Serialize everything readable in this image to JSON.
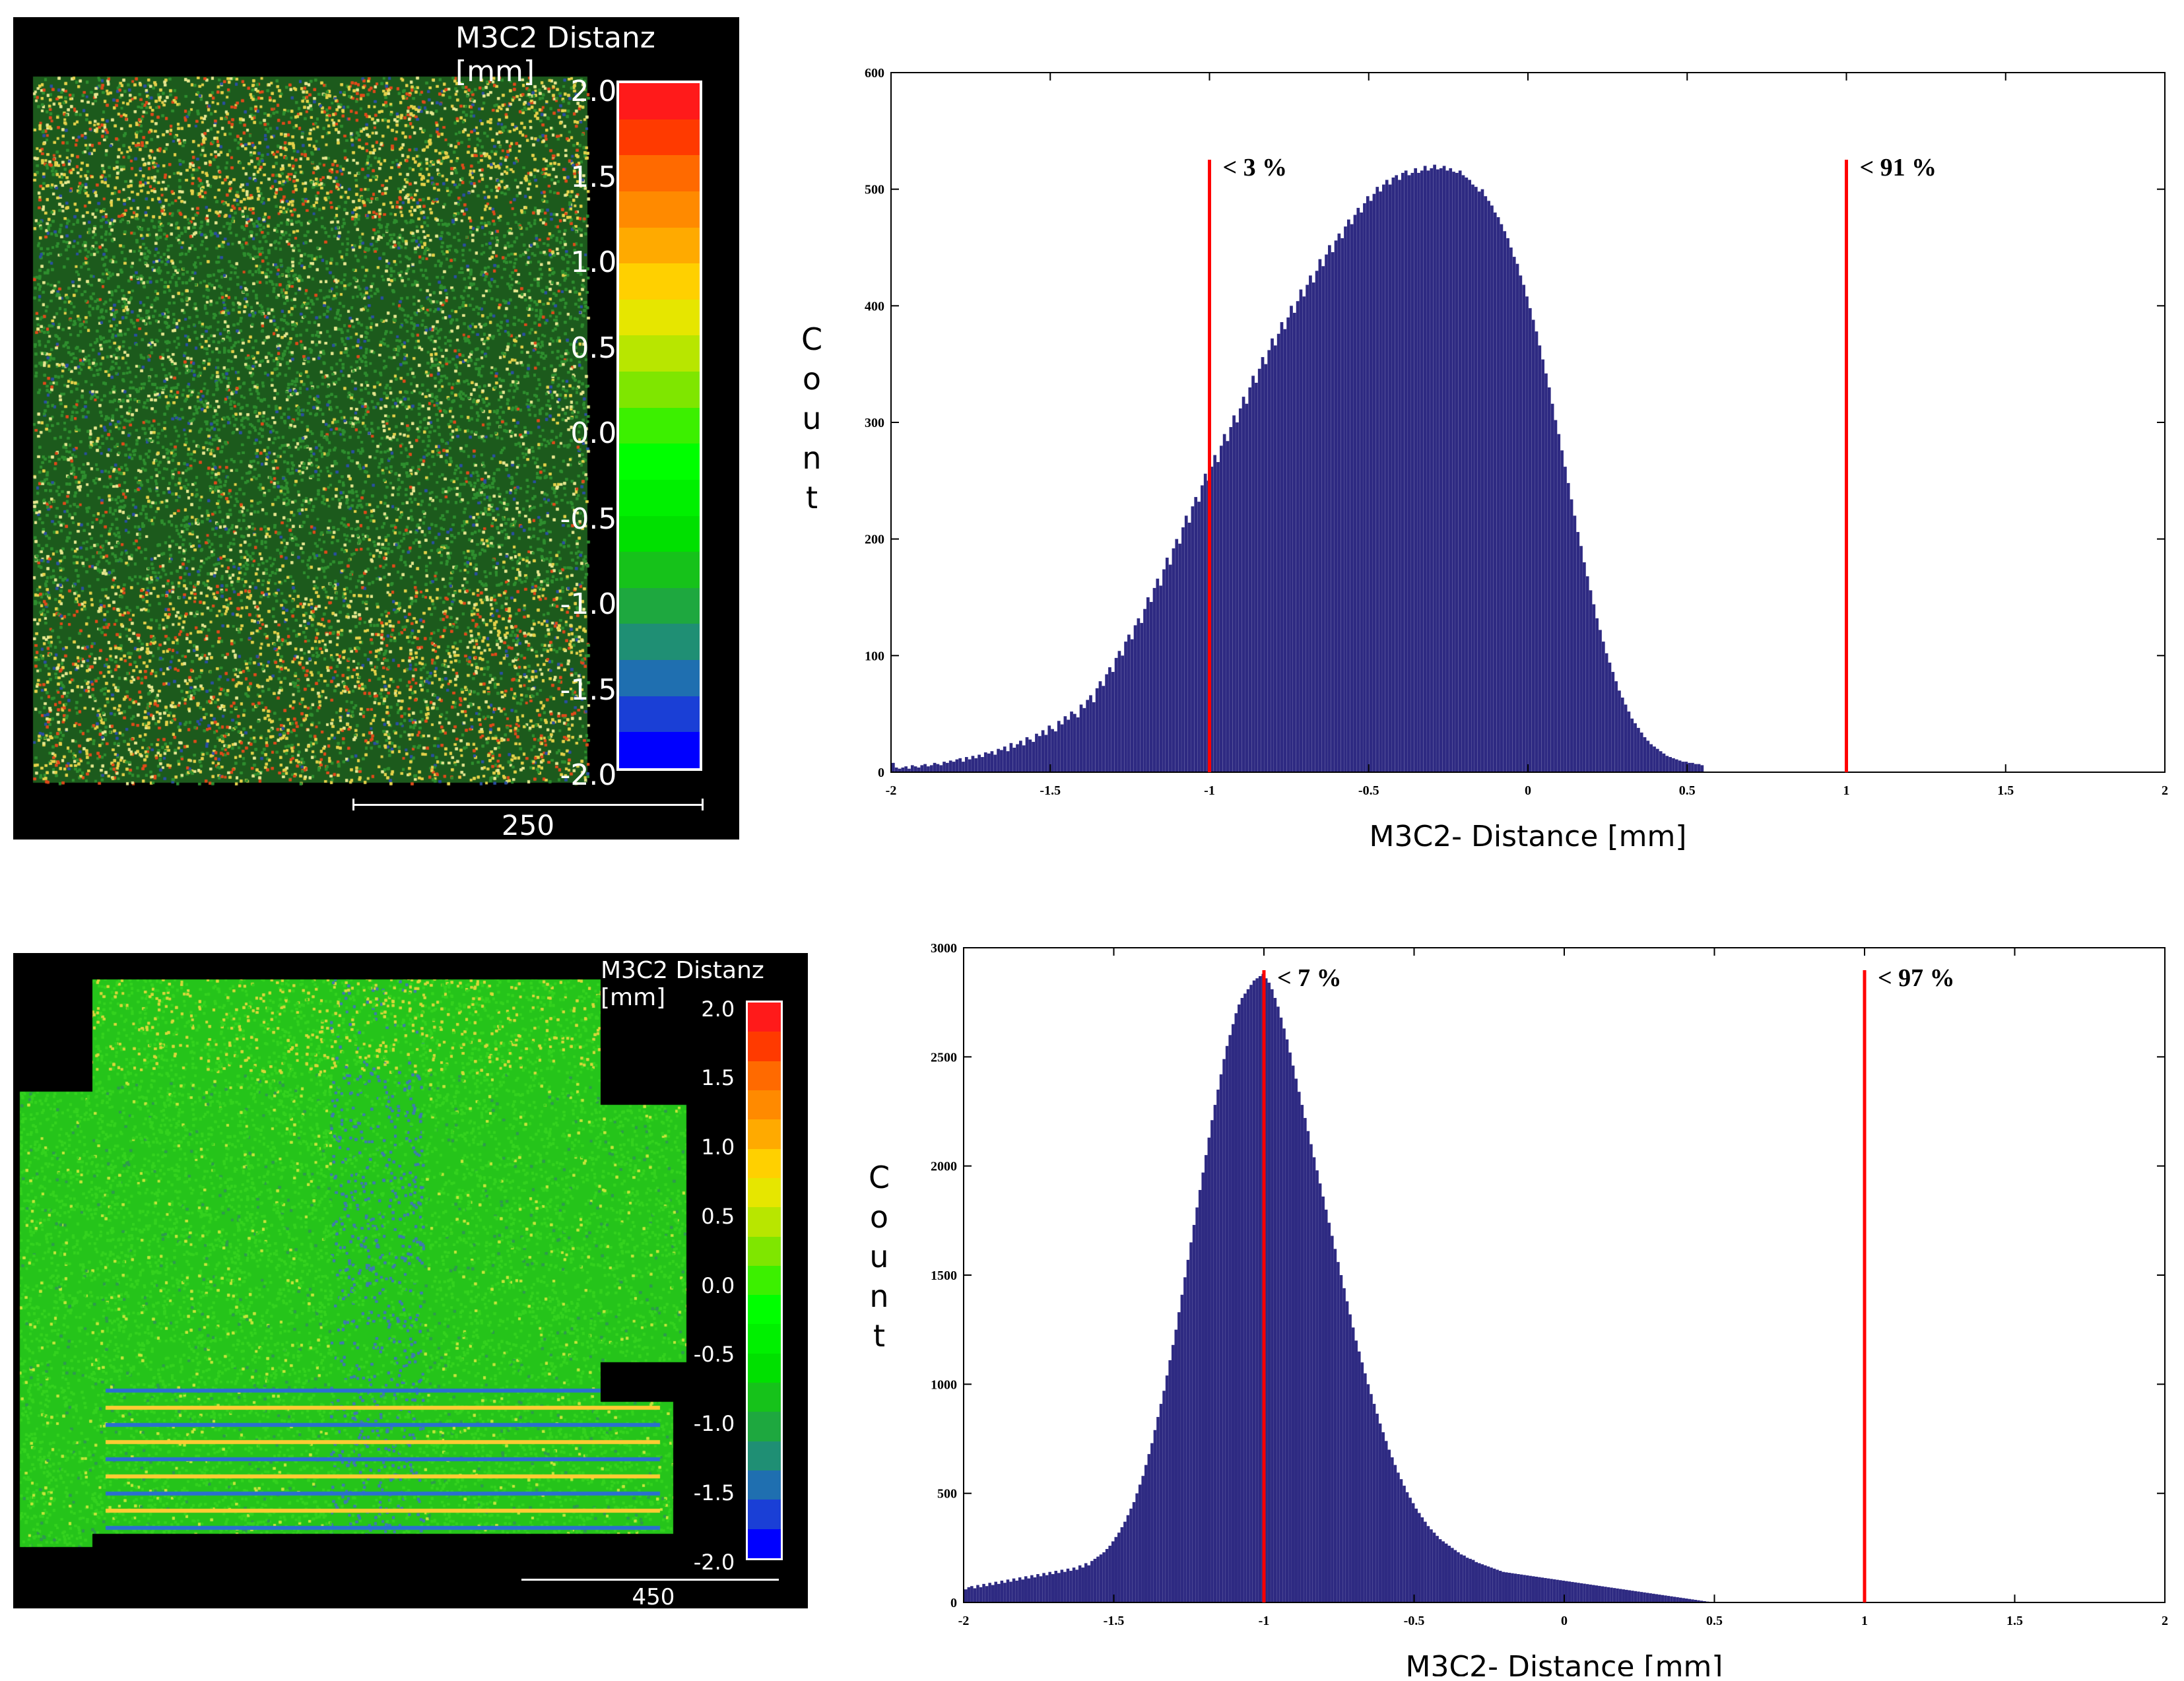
{
  "maps": [
    {
      "colorbar_title": "M3C2 Distanz [mm]",
      "colorbar_labels": [
        "2.0",
        "1.5",
        "1.0",
        "0.5",
        "0.0",
        "-0.5",
        "-1.0",
        "-1.5",
        "-2.0"
      ],
      "scale_label": "250"
    },
    {
      "colorbar_title": "M3C2 Distanz [mm]",
      "colorbar_labels": [
        "2.0",
        "1.5",
        "1.0",
        "0.5",
        "0.0",
        "-0.5",
        "-1.0",
        "-1.5",
        "-2.0"
      ],
      "scale_label": "450"
    }
  ],
  "colors": {
    "bar": "#2e2a82",
    "threshold_line": "#ff0000",
    "colormap": [
      "#0000ff",
      "#1a3fd6",
      "#1f6fb0",
      "#1f8f74",
      "#1ea83f",
      "#16c21a",
      "#00e000",
      "#00f000",
      "#00ff00",
      "#3cf000",
      "#7fe600",
      "#b8e600",
      "#e6e600",
      "#ffd000",
      "#ffaa00",
      "#ff8a00",
      "#ff6a00",
      "#ff3a00",
      "#ff1a1a"
    ]
  },
  "chart_data": [
    {
      "type": "bar",
      "ylabel": "Count",
      "xlabel": "M3C2- Distance [mm]",
      "xlim": [
        -2,
        2
      ],
      "ylim": [
        0,
        600
      ],
      "xticks": [
        "-2",
        "-1.5",
        "-1",
        "-0.5",
        "0",
        "0.5",
        "1",
        "1.5",
        "2"
      ],
      "yticks": [
        "0",
        "100",
        "200",
        "300",
        "400",
        "500",
        "600"
      ],
      "bin_start": -2.0,
      "bin_width": 0.01,
      "values": [
        8,
        4,
        3,
        4,
        5,
        3,
        6,
        5,
        4,
        6,
        7,
        5,
        6,
        8,
        7,
        6,
        9,
        8,
        10,
        9,
        11,
        12,
        9,
        13,
        11,
        14,
        12,
        15,
        13,
        17,
        16,
        18,
        15,
        20,
        19,
        22,
        18,
        25,
        21,
        24,
        27,
        23,
        30,
        28,
        26,
        33,
        31,
        36,
        32,
        40,
        37,
        35,
        44,
        41,
        48,
        45,
        52,
        50,
        47,
        58,
        55,
        62,
        66,
        60,
        72,
        78,
        74,
        84,
        90,
        86,
        98,
        104,
        100,
        112,
        118,
        114,
        126,
        132,
        128,
        140,
        150,
        146,
        158,
        166,
        160,
        174,
        184,
        178,
        192,
        200,
        196,
        210,
        220,
        214,
        228,
        236,
        232,
        246,
        256,
        250,
        262,
        272,
        266,
        280,
        290,
        284,
        296,
        306,
        300,
        312,
        322,
        316,
        330,
        340,
        334,
        346,
        356,
        350,
        362,
        372,
        366,
        376,
        386,
        380,
        390,
        400,
        394,
        404,
        414,
        408,
        418,
        426,
        420,
        430,
        440,
        434,
        444,
        452,
        446,
        456,
        462,
        458,
        468,
        474,
        470,
        478,
        484,
        480,
        488,
        494,
        490,
        496,
        502,
        498,
        504,
        508,
        504,
        510,
        512,
        508,
        514,
        516,
        512,
        514,
        518,
        514,
        516,
        520,
        516,
        518,
        521,
        517,
        518,
        520,
        516,
        518,
        515,
        514,
        516,
        512,
        510,
        508,
        504,
        502,
        498,
        500,
        494,
        490,
        486,
        480,
        476,
        470,
        464,
        458,
        450,
        442,
        436,
        426,
        418,
        408,
        398,
        388,
        378,
        366,
        354,
        342,
        330,
        316,
        302,
        290,
        276,
        262,
        248,
        234,
        220,
        206,
        194,
        180,
        168,
        156,
        144,
        132,
        122,
        112,
        102,
        94,
        86,
        78,
        70,
        64,
        58,
        52,
        46,
        42,
        38,
        34,
        30,
        27,
        24,
        22,
        20,
        18,
        16,
        14,
        13,
        12,
        11,
        10,
        9,
        9,
        8,
        8,
        7,
        7,
        6
      ],
      "annotations": [
        {
          "x": -1.0,
          "label": "< 3 %"
        },
        {
          "x": 1.0,
          "label": "< 91 %"
        }
      ]
    },
    {
      "type": "bar",
      "ylabel": "Count",
      "xlabel": "M3C2- Distance [mm]",
      "xlim": [
        -2,
        2
      ],
      "ylim": [
        0,
        3000
      ],
      "xticks": [
        "-2",
        "-1.5",
        "-1",
        "-0.5",
        "0",
        "0.5",
        "1",
        "1.5",
        "2"
      ],
      "yticks": [
        "0",
        "500",
        "1000",
        "1500",
        "2000",
        "2500",
        "3000"
      ],
      "bin_start": -2.0,
      "bin_width": 0.01,
      "values": [
        60,
        70,
        75,
        65,
        80,
        70,
        85,
        75,
        90,
        80,
        95,
        85,
        100,
        90,
        105,
        95,
        110,
        100,
        115,
        105,
        120,
        110,
        125,
        115,
        130,
        120,
        135,
        125,
        140,
        130,
        145,
        135,
        150,
        140,
        155,
        145,
        160,
        150,
        170,
        160,
        180,
        170,
        190,
        200,
        210,
        220,
        230,
        245,
        260,
        280,
        300,
        320,
        345,
        370,
        400,
        430,
        460,
        500,
        540,
        580,
        630,
        680,
        730,
        790,
        850,
        910,
        970,
        1040,
        1110,
        1180,
        1250,
        1330,
        1410,
        1490,
        1570,
        1650,
        1730,
        1810,
        1890,
        1970,
        2050,
        2130,
        2210,
        2280,
        2350,
        2420,
        2490,
        2550,
        2600,
        2650,
        2700,
        2740,
        2770,
        2790,
        2810,
        2830,
        2850,
        2860,
        2870,
        2880,
        2860,
        2840,
        2810,
        2770,
        2730,
        2680,
        2630,
        2580,
        2520,
        2460,
        2400,
        2340,
        2280,
        2220,
        2160,
        2100,
        2040,
        1980,
        1920,
        1860,
        1800,
        1740,
        1680,
        1620,
        1560,
        1500,
        1440,
        1380,
        1320,
        1260,
        1200,
        1150,
        1100,
        1050,
        1000,
        955,
        910,
        865,
        820,
        780,
        740,
        700,
        665,
        630,
        595,
        565,
        535,
        505,
        480,
        455,
        430,
        410,
        390,
        370,
        350,
        335,
        320,
        305,
        290,
        280,
        270,
        260,
        250,
        240,
        230,
        220,
        215,
        205,
        200,
        195,
        185,
        180,
        175,
        170,
        165,
        160,
        155,
        150,
        145,
        140,
        138,
        136,
        134,
        132,
        130,
        128,
        126,
        124,
        122,
        120,
        118,
        116,
        114,
        112,
        110,
        108,
        106,
        104,
        102,
        100,
        98,
        96,
        94,
        92,
        90,
        88,
        86,
        84,
        82,
        80,
        78,
        76,
        74,
        72,
        70,
        68,
        66,
        64,
        62,
        60,
        58,
        56,
        54,
        52,
        50,
        48,
        46,
        44,
        42,
        40,
        38,
        36,
        34,
        32,
        30,
        28,
        26,
        24,
        22,
        20,
        18,
        16,
        14,
        12,
        10,
        8,
        6,
        4,
        2,
        1
      ],
      "annotations": [
        {
          "x": -1.0,
          "label": "< 7 %"
        },
        {
          "x": 1.0,
          "label": "< 97 %"
        }
      ]
    }
  ]
}
